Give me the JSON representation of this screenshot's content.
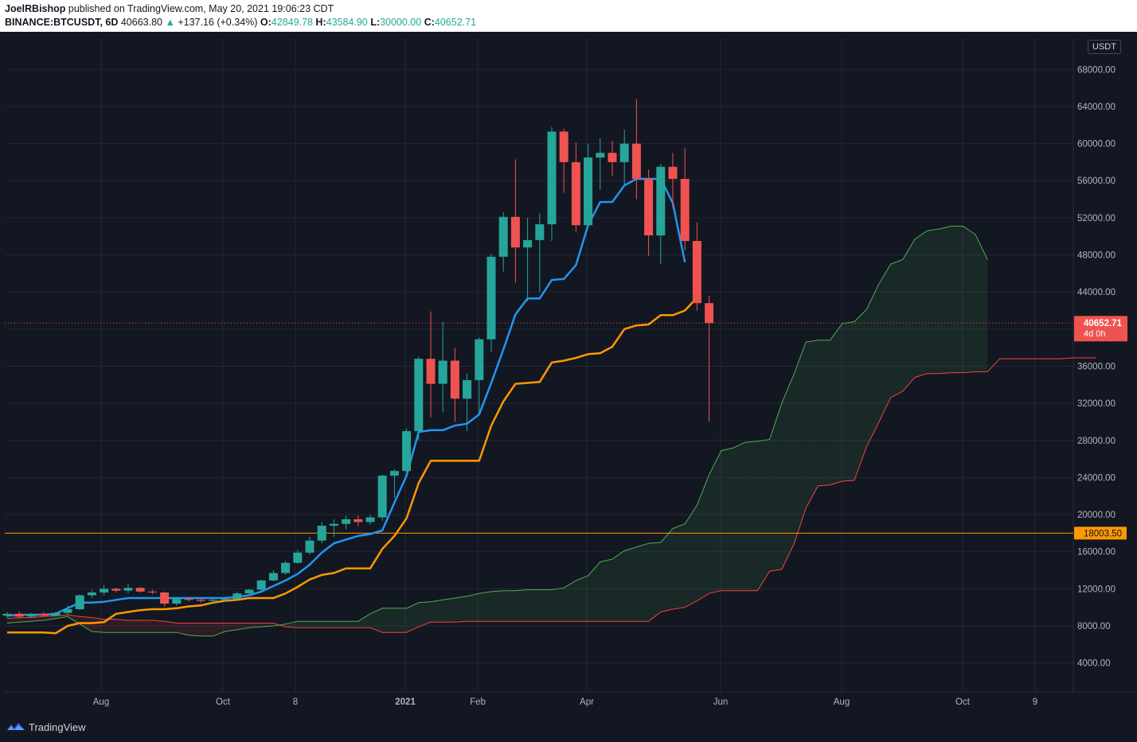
{
  "header": {
    "author": "JoelRBishop",
    "published_text": "published on TradingView.com, May 20, 2021 19:06:23 CDT",
    "symbol": "BINANCE:BTCUSDT, 6D",
    "last": "40663.80",
    "change": "+137.16 (+0.34%)",
    "open_label": "O:",
    "open": "42849.78",
    "high_label": "H:",
    "high": "43584.90",
    "low_label": "L:",
    "low": "30000.00",
    "close_label": "C:",
    "close": "40652.71"
  },
  "footer": {
    "brand": "TradingView"
  },
  "colors": {
    "background": "#131722",
    "bull": "#26a69a",
    "bear": "#ef5350",
    "conversion_line": "#2196f3",
    "base_line": "#ff9800",
    "span_a": "#4caf50",
    "span_b": "#f44336",
    "hline": "#ff9800"
  },
  "chart_data": {
    "type": "candlestick",
    "unit": "USDT",
    "ylim": [
      0,
      70000
    ],
    "y_ticks": [
      "4000.00",
      "8000.00",
      "12000.00",
      "16000.00",
      "20000.00",
      "24000.00",
      "28000.00",
      "32000.00",
      "36000.00",
      "40000.00",
      "44000.00",
      "48000.00",
      "52000.00",
      "56000.00",
      "60000.00",
      "64000.00",
      "68000.00"
    ],
    "x_ticks": [
      "Aug",
      "Oct",
      "8",
      "2021",
      "Feb",
      "Apr",
      "Jun",
      "Aug",
      "Oct",
      "9"
    ],
    "price_badge": {
      "value": "40652.71",
      "countdown": "4d 0h"
    },
    "hline_badge": {
      "value": "18003.50"
    },
    "candles": [
      {
        "o": 9100,
        "h": 9500,
        "l": 8900,
        "c": 9300
      },
      {
        "o": 9300,
        "h": 9600,
        "l": 8800,
        "c": 9000
      },
      {
        "o": 9000,
        "h": 9400,
        "l": 8900,
        "c": 9300
      },
      {
        "o": 9300,
        "h": 9500,
        "l": 9000,
        "c": 9100
      },
      {
        "o": 9100,
        "h": 9500,
        "l": 9000,
        "c": 9400
      },
      {
        "o": 9400,
        "h": 10200,
        "l": 9200,
        "c": 9800
      },
      {
        "o": 9800,
        "h": 11400,
        "l": 9700,
        "c": 11300
      },
      {
        "o": 11300,
        "h": 11900,
        "l": 11000,
        "c": 11600
      },
      {
        "o": 11600,
        "h": 12400,
        "l": 11300,
        "c": 12000
      },
      {
        "o": 12000,
        "h": 12100,
        "l": 11600,
        "c": 11800
      },
      {
        "o": 11800,
        "h": 12500,
        "l": 11500,
        "c": 12100
      },
      {
        "o": 12100,
        "h": 12200,
        "l": 11600,
        "c": 11700
      },
      {
        "o": 11700,
        "h": 11900,
        "l": 11400,
        "c": 11600
      },
      {
        "o": 11600,
        "h": 11700,
        "l": 10100,
        "c": 10400
      },
      {
        "o": 10400,
        "h": 11100,
        "l": 10200,
        "c": 10900
      },
      {
        "o": 10900,
        "h": 11000,
        "l": 10600,
        "c": 10800
      },
      {
        "o": 10800,
        "h": 11000,
        "l": 10500,
        "c": 10700
      },
      {
        "o": 10700,
        "h": 11000,
        "l": 10500,
        "c": 10800
      },
      {
        "o": 10800,
        "h": 11100,
        "l": 10600,
        "c": 10900
      },
      {
        "o": 10900,
        "h": 11700,
        "l": 10800,
        "c": 11500
      },
      {
        "o": 11500,
        "h": 12000,
        "l": 11300,
        "c": 11900
      },
      {
        "o": 11900,
        "h": 13000,
        "l": 11800,
        "c": 12900
      },
      {
        "o": 12900,
        "h": 14000,
        "l": 12800,
        "c": 13700
      },
      {
        "o": 13700,
        "h": 15000,
        "l": 13500,
        "c": 14800
      },
      {
        "o": 14800,
        "h": 16200,
        "l": 14700,
        "c": 15900
      },
      {
        "o": 15900,
        "h": 17600,
        "l": 15700,
        "c": 17200
      },
      {
        "o": 17200,
        "h": 19200,
        "l": 16900,
        "c": 18800
      },
      {
        "o": 18800,
        "h": 19500,
        "l": 17600,
        "c": 19000
      },
      {
        "o": 19000,
        "h": 19900,
        "l": 18400,
        "c": 19500
      },
      {
        "o": 19500,
        "h": 19900,
        "l": 18700,
        "c": 19200
      },
      {
        "o": 19200,
        "h": 20000,
        "l": 18900,
        "c": 19700
      },
      {
        "o": 19700,
        "h": 24300,
        "l": 19300,
        "c": 24200
      },
      {
        "o": 24200,
        "h": 24900,
        "l": 21800,
        "c": 24700
      },
      {
        "o": 24700,
        "h": 29300,
        "l": 24600,
        "c": 29000
      },
      {
        "o": 29000,
        "h": 37000,
        "l": 28000,
        "c": 36800
      },
      {
        "o": 36800,
        "h": 41900,
        "l": 30500,
        "c": 34100
      },
      {
        "o": 34100,
        "h": 40800,
        "l": 31000,
        "c": 36600
      },
      {
        "o": 36600,
        "h": 38000,
        "l": 30000,
        "c": 32500
      },
      {
        "o": 32500,
        "h": 35200,
        "l": 29000,
        "c": 34500
      },
      {
        "o": 34500,
        "h": 39100,
        "l": 30900,
        "c": 38900
      },
      {
        "o": 38900,
        "h": 48100,
        "l": 37500,
        "c": 47800
      },
      {
        "o": 47800,
        "h": 52600,
        "l": 46200,
        "c": 52100
      },
      {
        "o": 52100,
        "h": 58300,
        "l": 45000,
        "c": 48800
      },
      {
        "o": 48800,
        "h": 52000,
        "l": 43000,
        "c": 49600
      },
      {
        "o": 49600,
        "h": 52500,
        "l": 44000,
        "c": 51300
      },
      {
        "o": 51300,
        "h": 61800,
        "l": 49500,
        "c": 61300
      },
      {
        "o": 61300,
        "h": 61600,
        "l": 54700,
        "c": 58000
      },
      {
        "o": 58000,
        "h": 60100,
        "l": 50500,
        "c": 51200
      },
      {
        "o": 51200,
        "h": 60000,
        "l": 50900,
        "c": 58500
      },
      {
        "o": 58500,
        "h": 60600,
        "l": 55000,
        "c": 59000
      },
      {
        "o": 59000,
        "h": 60300,
        "l": 56500,
        "c": 58000
      },
      {
        "o": 58000,
        "h": 61500,
        "l": 55500,
        "c": 60000
      },
      {
        "o": 60000,
        "h": 64800,
        "l": 54000,
        "c": 56200
      },
      {
        "o": 56200,
        "h": 57200,
        "l": 47900,
        "c": 50100
      },
      {
        "o": 50100,
        "h": 57800,
        "l": 47000,
        "c": 57500
      },
      {
        "o": 57500,
        "h": 59000,
        "l": 53000,
        "c": 56200
      },
      {
        "o": 56200,
        "h": 59500,
        "l": 48500,
        "c": 49500
      },
      {
        "o": 49500,
        "h": 51500,
        "l": 42000,
        "c": 42800
      },
      {
        "o": 42800,
        "h": 43600,
        "l": 30000,
        "c": 40653
      }
    ],
    "series": [
      {
        "name": "Conversion Line",
        "start": 0,
        "values": [
          9100,
          9200,
          9200,
          9200,
          9300,
          9900,
          10500,
          10500,
          10600,
          10800,
          11000,
          11000,
          11000,
          11000,
          11000,
          11000,
          11000,
          11000,
          11000,
          11100,
          11300,
          11700,
          12300,
          12900,
          13600,
          14600,
          15900,
          16900,
          17300,
          17700,
          17900,
          18300,
          21300,
          24200,
          28900,
          29100,
          29100,
          29600,
          29800,
          30800,
          34200,
          37800,
          41600,
          43300,
          43300,
          45300,
          45400,
          46900,
          51200,
          53700,
          53700,
          55500,
          56200,
          56200,
          56200,
          53600,
          47200
        ]
      },
      {
        "name": "Base Line",
        "start": 0,
        "values": [
          7300,
          7300,
          7300,
          7300,
          7200,
          8000,
          8300,
          8300,
          8400,
          9300,
          9500,
          9700,
          9800,
          9800,
          9900,
          10100,
          10200,
          10500,
          10700,
          10800,
          11000,
          11000,
          11000,
          11500,
          12200,
          13000,
          13500,
          13700,
          14200,
          14200,
          14200,
          16300,
          17700,
          19600,
          23400,
          25800,
          25800,
          25800,
          25800,
          25800,
          29600,
          32200,
          34100,
          34200,
          34300,
          36400,
          36600,
          36900,
          37300,
          37400,
          38100,
          40000,
          40400,
          40500,
          41500,
          41500,
          42000,
          43400
        ]
      },
      {
        "name": "Lead 1",
        "start": 0,
        "values": [
          8300,
          8400,
          8500,
          8600,
          8800,
          9000,
          8200,
          7400,
          7300,
          7300,
          7300,
          7300,
          7300,
          7300,
          7300,
          7000,
          6900,
          6900,
          7400,
          7600,
          7800,
          7900,
          8000,
          8200,
          8500,
          8500,
          8500,
          8500,
          8500,
          8500,
          9300,
          9900,
          9900,
          9900,
          10500,
          10600,
          10800,
          11000,
          11200,
          11500,
          11700,
          11800,
          11800,
          11900,
          11900,
          11900,
          12100,
          12900,
          13400,
          14900,
          15200,
          16100,
          16500,
          16900,
          17000,
          18500,
          19000,
          21000,
          24300,
          26900,
          27200,
          27800,
          27900,
          28100,
          32000,
          35100,
          38600,
          38800,
          38800,
          40600,
          40800,
          42100,
          44800,
          47000,
          47500,
          49700,
          50600,
          50800,
          51100,
          51100,
          50200,
          47500
        ]
      },
      {
        "name": "Lead 2",
        "start": 0,
        "values": [
          8800,
          8900,
          8900,
          9000,
          9100,
          9200,
          9000,
          8900,
          8700,
          8700,
          8600,
          8600,
          8600,
          8500,
          8300,
          8300,
          8300,
          8300,
          8300,
          8300,
          8300,
          8300,
          8300,
          7900,
          7800,
          7800,
          7800,
          7800,
          7800,
          7800,
          7800,
          7300,
          7300,
          7300,
          7900,
          8400,
          8400,
          8400,
          8500,
          8500,
          8500,
          8500,
          8500,
          8500,
          8500,
          8500,
          8500,
          8500,
          8500,
          8500,
          8500,
          8500,
          8500,
          8500,
          9500,
          9800,
          10000,
          10700,
          11500,
          11800,
          11800,
          11800,
          11800,
          13900,
          14100,
          16800,
          20700,
          23100,
          23200,
          23600,
          23700,
          27300,
          29900,
          32600,
          33300,
          34800,
          35200,
          35200,
          35300,
          35300,
          35400,
          35400,
          36800,
          36800,
          36800,
          36800,
          36800,
          36800,
          36900,
          36900,
          36900
        ]
      }
    ],
    "hline": 18003.5,
    "last_price": 40652.71
  }
}
